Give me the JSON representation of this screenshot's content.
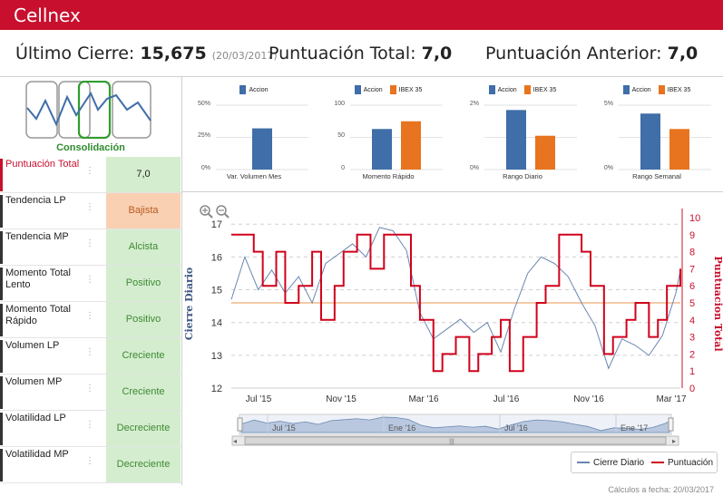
{
  "header": {
    "brand": "Cellnex"
  },
  "summary": {
    "last_close_label": "Último Cierre:",
    "last_close_value": "15,675",
    "last_close_date": "(20/03/2017)",
    "total_score_label": "Puntuación Total:",
    "total_score_value": "7,0",
    "prev_score_label": "Puntuación Anterior:",
    "prev_score_value": "7,0"
  },
  "phase": {
    "label": "Consolidación"
  },
  "indicators": [
    {
      "name": "Puntuación Total",
      "value": "7,0",
      "tone": "first"
    },
    {
      "name": "Tendencia LP",
      "value": "Bajista",
      "tone": "orange"
    },
    {
      "name": "Tendencia MP",
      "value": "Alcista",
      "tone": "green"
    },
    {
      "name": "Momento Total Lento",
      "value": "Positivo",
      "tone": "green"
    },
    {
      "name": "Momento Total Rápido",
      "value": "Positivo",
      "tone": "green"
    },
    {
      "name": "Volumen LP",
      "value": "Creciente",
      "tone": "green"
    },
    {
      "name": "Volumen MP",
      "value": "Creciente",
      "tone": "green"
    },
    {
      "name": "Volatilidad LP",
      "value": "Decreciente",
      "tone": "green"
    },
    {
      "name": "Volatilidad MP",
      "value": "Decreciente",
      "tone": "green"
    }
  ],
  "colors": {
    "accion": "#3f6ea8",
    "ibex": "#e8741f",
    "price": "#6a87b0",
    "score": "#d0021b",
    "ref": "#f0b98a",
    "brand": "#c8102e"
  },
  "mini_charts": [
    {
      "title": "Var. Volumen Mes",
      "legend": [
        "Accion"
      ],
      "yticks": [
        "50%",
        "25%",
        "0%"
      ],
      "ymax": 50,
      "values": [
        32
      ]
    },
    {
      "title": "Momento Rápido",
      "legend": [
        "Accion",
        "IBEX 35"
      ],
      "yticks": [
        "100",
        "50",
        "0"
      ],
      "ymax": 100,
      "values": [
        63,
        75
      ]
    },
    {
      "title": "Rango Diario",
      "legend": [
        "Accion",
        "IBEX 35"
      ],
      "yticks": [
        "2%",
        "",
        "0%"
      ],
      "ymax": 2,
      "values": [
        1.85,
        1.05
      ]
    },
    {
      "title": "Rango Semanal",
      "legend": [
        "Accion",
        "IBEX 35"
      ],
      "yticks": [
        "5%",
        "",
        "0%"
      ],
      "ymax": 5,
      "values": [
        4.35,
        3.15
      ]
    }
  ],
  "chart_data": {
    "type": "line",
    "ylabel": "Cierre Diario",
    "y2label": "Puntuacion Total",
    "ylim": [
      12,
      17.2
    ],
    "y2lim": [
      0,
      10
    ],
    "yticks": [
      "12",
      "13",
      "14",
      "15",
      "16",
      "17"
    ],
    "y2ticks": [
      "0",
      "1",
      "2",
      "3",
      "4",
      "5",
      "6",
      "7",
      "8",
      "9",
      "10"
    ],
    "xticks": [
      "Jul '15",
      "Nov '15",
      "Mar '16",
      "Jul '16",
      "Nov '16",
      "Mar '17"
    ],
    "navigator_ticks": [
      "Jul '15",
      "Ene '16",
      "Jul '16",
      "Ene '17"
    ],
    "reference_value": 14.6,
    "series": [
      {
        "name": "Cierre Diario",
        "t": [
          0,
          0.03,
          0.06,
          0.09,
          0.12,
          0.15,
          0.18,
          0.21,
          0.24,
          0.27,
          0.3,
          0.33,
          0.36,
          0.39,
          0.42,
          0.45,
          0.48,
          0.51,
          0.54,
          0.57,
          0.6,
          0.63,
          0.66,
          0.69,
          0.72,
          0.75,
          0.78,
          0.81,
          0.84,
          0.87,
          0.9,
          0.93,
          0.96,
          0.99,
          1.0
        ],
        "values": [
          14.7,
          16.0,
          15.0,
          15.6,
          14.9,
          15.4,
          14.6,
          15.8,
          16.1,
          16.4,
          16.0,
          16.9,
          16.8,
          16.2,
          14.3,
          13.5,
          13.8,
          14.1,
          13.7,
          14.0,
          13.1,
          14.4,
          15.5,
          16.0,
          15.8,
          15.4,
          14.6,
          13.9,
          12.6,
          13.5,
          13.3,
          13.0,
          13.6,
          14.9,
          15.6
        ]
      },
      {
        "name": "Puntuación",
        "t": [
          0,
          0.05,
          0.07,
          0.1,
          0.12,
          0.15,
          0.18,
          0.2,
          0.23,
          0.25,
          0.28,
          0.31,
          0.34,
          0.37,
          0.4,
          0.42,
          0.45,
          0.47,
          0.5,
          0.53,
          0.55,
          0.58,
          0.6,
          0.62,
          0.65,
          0.68,
          0.7,
          0.73,
          0.76,
          0.78,
          0.8,
          0.83,
          0.85,
          0.88,
          0.9,
          0.93,
          0.95,
          0.97,
          1.0
        ],
        "values": [
          9,
          8,
          6,
          8,
          5,
          6,
          8,
          4,
          6,
          8,
          9,
          7,
          9,
          9,
          6,
          4,
          1,
          2,
          3,
          1,
          2,
          3,
          4,
          1,
          3,
          5,
          6,
          9,
          9,
          8,
          6,
          2,
          3,
          4,
          5,
          3,
          4,
          6,
          7
        ]
      }
    ]
  },
  "main_legend": {
    "price": "Cierre Diario",
    "score": "Puntuación"
  },
  "footer": {
    "note": "Cálculos a fecha: 20/03/2017"
  }
}
